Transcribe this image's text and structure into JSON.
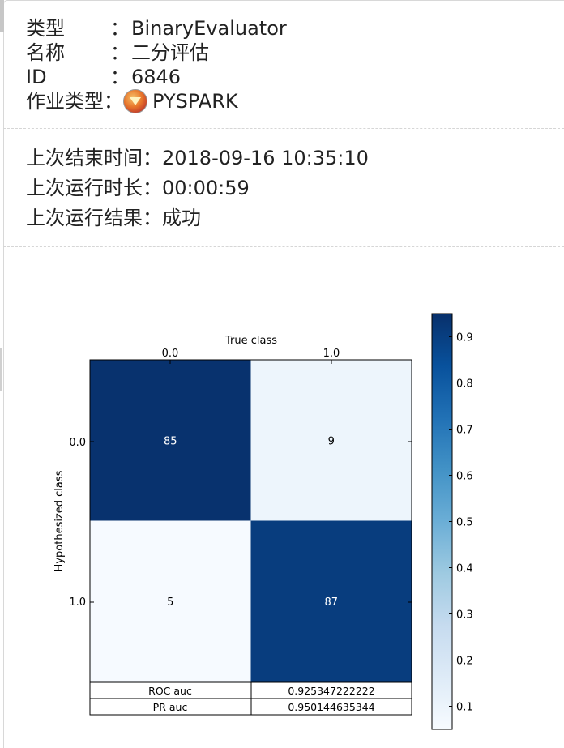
{
  "job": {
    "type_label": "类型",
    "type_value": "BinaryEvaluator",
    "name_label": "名称",
    "name_value": "二分评估",
    "id_label": "ID",
    "id_value": "6846",
    "jobtype_label": "作业类型",
    "jobtype_value": "PYSPARK",
    "jobtype_icon": "spark-superman-icon",
    "colon": "："
  },
  "last_run": {
    "end_time_label": "上次结束时间：",
    "end_time_value": "2018-09-16 10:35:10",
    "duration_label": "上次运行时长：",
    "duration_value": "00:00:59",
    "result_label": "上次运行结果：",
    "result_value": "成功"
  },
  "chart_data": {
    "type": "heatmap",
    "title": "",
    "xlabel": "True class",
    "ylabel": "Hypothesized class",
    "x_categories": [
      "0.0",
      "1.0"
    ],
    "y_categories": [
      "0.0",
      "1.0"
    ],
    "cells": [
      [
        85,
        9
      ],
      [
        5,
        87
      ]
    ],
    "normalized": [
      [
        0.944,
        0.094
      ],
      [
        0.056,
        0.906
      ]
    ],
    "colormap": "Blues",
    "colorbar": {
      "ticks": [
        "0.1",
        "0.2",
        "0.3",
        "0.4",
        "0.5",
        "0.6",
        "0.7",
        "0.8",
        "0.9"
      ],
      "range": [
        0.05,
        0.95
      ]
    },
    "table": [
      {
        "label": "ROC auc",
        "value": "0.925347222222"
      },
      {
        "label": "PR auc",
        "value": "0.950144635344"
      }
    ]
  }
}
